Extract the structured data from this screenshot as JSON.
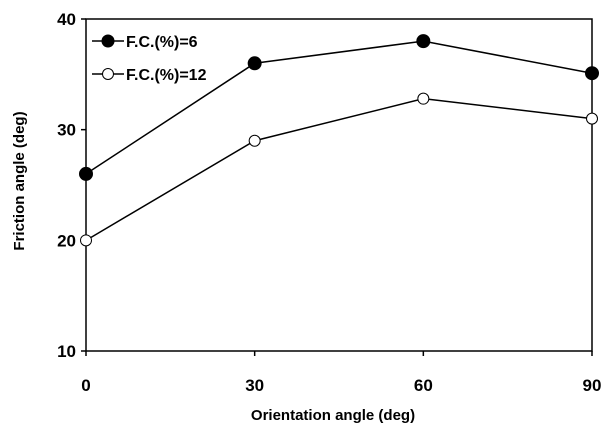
{
  "chart_data": {
    "type": "line",
    "title": "",
    "xlabel": "Orientation angle (deg)",
    "ylabel": "Friction angle (deg)",
    "x": [
      0,
      30,
      60,
      90
    ],
    "x_tick_labels": [
      "0",
      "30",
      "60",
      "90"
    ],
    "xlim": [
      0,
      90
    ],
    "ylim": [
      10,
      40
    ],
    "y_ticks": [
      10,
      20,
      30,
      40
    ],
    "y_tick_labels": [
      "10",
      "20",
      "30",
      "40"
    ],
    "grid": false,
    "legend_position": "top-left",
    "series": [
      {
        "name": "F.C.(%)=6",
        "values": [
          26,
          36,
          38,
          35.1
        ],
        "marker": "filled-circle",
        "color": "#000000"
      },
      {
        "name": "F.C.(%)=12",
        "values": [
          20,
          29,
          32.8,
          31
        ],
        "marker": "open-circle",
        "color": "#000000"
      }
    ]
  }
}
